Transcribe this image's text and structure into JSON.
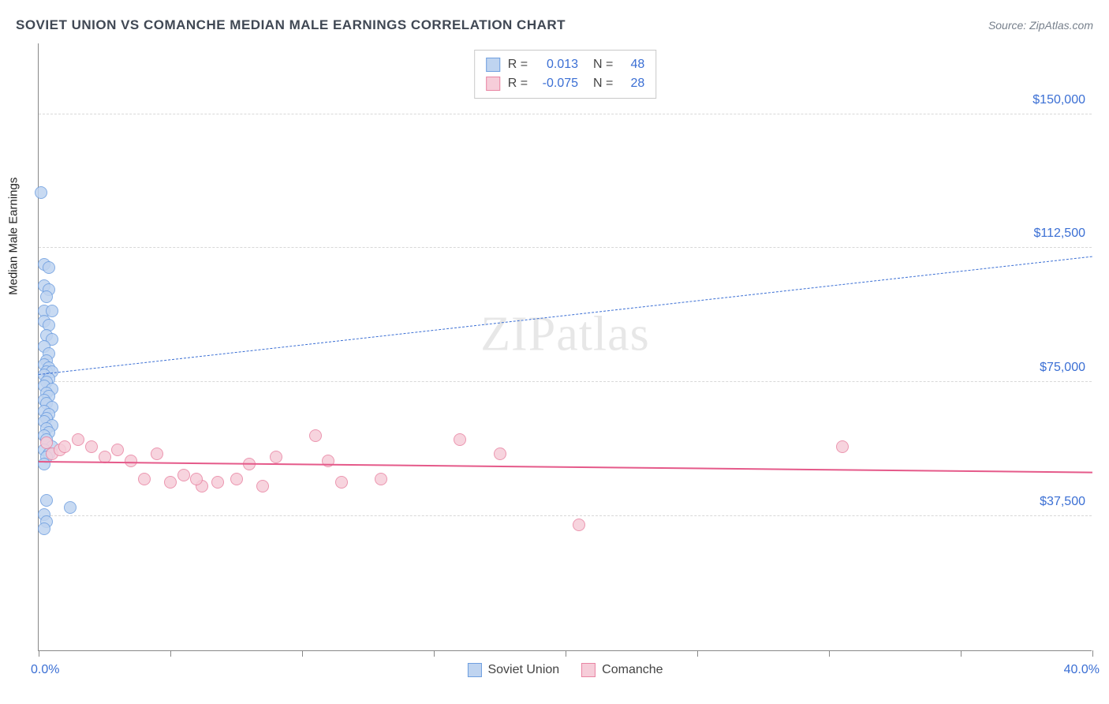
{
  "title": "SOVIET UNION VS COMANCHE MEDIAN MALE EARNINGS CORRELATION CHART",
  "source": "Source: ZipAtlas.com",
  "watermark": "ZIPatlas",
  "chart": {
    "type": "scatter",
    "y_axis_title": "Median Male Earnings",
    "x_range": [
      0,
      40
    ],
    "y_range": [
      0,
      170000
    ],
    "x_tick_positions": [
      0,
      5,
      10,
      15,
      20,
      25,
      30,
      35,
      40
    ],
    "x_label_min": "0.0%",
    "x_label_max": "40.0%",
    "y_gridlines": [
      {
        "value": 37500,
        "label": "$37,500"
      },
      {
        "value": 75000,
        "label": "$75,000"
      },
      {
        "value": 112500,
        "label": "$112,500"
      },
      {
        "value": 150000,
        "label": "$150,000"
      }
    ],
    "marker_radius": 8,
    "marker_stroke_width": 1.5,
    "background_color": "#ffffff",
    "grid_color": "#d8d8d8",
    "axis_color": "#888888",
    "series": [
      {
        "name": "Soviet Union",
        "fill": "#bfd4f0",
        "stroke": "#6f9fe0",
        "opacity": 0.85,
        "stats": {
          "R": "0.013",
          "N": "48"
        },
        "trend": {
          "x1": 0,
          "y1": 77000,
          "x2": 40,
          "y2": 110000,
          "dash": "7 6",
          "color": "#3b6fd4",
          "width": 1.5
        },
        "points": [
          [
            0.1,
            128000
          ],
          [
            0.2,
            108000
          ],
          [
            0.4,
            107000
          ],
          [
            0.2,
            102000
          ],
          [
            0.4,
            101000
          ],
          [
            0.3,
            99000
          ],
          [
            0.2,
            95000
          ],
          [
            0.5,
            95000
          ],
          [
            0.2,
            92000
          ],
          [
            0.4,
            91000
          ],
          [
            0.3,
            88000
          ],
          [
            0.5,
            87000
          ],
          [
            0.2,
            85000
          ],
          [
            0.4,
            83000
          ],
          [
            0.3,
            81000
          ],
          [
            0.2,
            80000
          ],
          [
            0.4,
            79000
          ],
          [
            0.3,
            78000
          ],
          [
            0.5,
            78000
          ],
          [
            0.2,
            77000
          ],
          [
            0.4,
            76000
          ],
          [
            0.3,
            75000
          ],
          [
            0.2,
            74000
          ],
          [
            0.5,
            73000
          ],
          [
            0.3,
            72000
          ],
          [
            0.4,
            71000
          ],
          [
            0.2,
            70000
          ],
          [
            0.3,
            69000
          ],
          [
            0.5,
            68000
          ],
          [
            0.2,
            67000
          ],
          [
            0.4,
            66000
          ],
          [
            0.3,
            65000
          ],
          [
            0.2,
            64000
          ],
          [
            0.5,
            63000
          ],
          [
            0.3,
            62000
          ],
          [
            0.4,
            61000
          ],
          [
            0.2,
            60000
          ],
          [
            0.3,
            59000
          ],
          [
            0.5,
            57000
          ],
          [
            0.2,
            56000
          ],
          [
            0.4,
            55000
          ],
          [
            0.3,
            54000
          ],
          [
            0.2,
            52000
          ],
          [
            0.3,
            42000
          ],
          [
            1.2,
            40000
          ],
          [
            0.2,
            38000
          ],
          [
            0.3,
            36000
          ],
          [
            0.2,
            34000
          ]
        ]
      },
      {
        "name": "Comanche",
        "fill": "#f6cdd9",
        "stroke": "#e985a3",
        "opacity": 0.85,
        "stats": {
          "R": "-0.075",
          "N": "28"
        },
        "trend": {
          "x1": 0,
          "y1": 52500,
          "x2": 40,
          "y2": 49500,
          "dash": "none",
          "color": "#e55a8a",
          "width": 2.5
        },
        "points": [
          [
            0.3,
            58000
          ],
          [
            0.5,
            55000
          ],
          [
            0.8,
            56000
          ],
          [
            1.0,
            57000
          ],
          [
            1.5,
            59000
          ],
          [
            2.0,
            57000
          ],
          [
            2.5,
            54000
          ],
          [
            3.0,
            56000
          ],
          [
            3.5,
            53000
          ],
          [
            4.0,
            48000
          ],
          [
            4.5,
            55000
          ],
          [
            5.0,
            47000
          ],
          [
            5.5,
            49000
          ],
          [
            6.2,
            46000
          ],
          [
            6.0,
            48000
          ],
          [
            6.8,
            47000
          ],
          [
            7.5,
            48000
          ],
          [
            8.0,
            52000
          ],
          [
            8.5,
            46000
          ],
          [
            9.0,
            54000
          ],
          [
            10.5,
            60000
          ],
          [
            11.0,
            53000
          ],
          [
            11.5,
            47000
          ],
          [
            13.0,
            48000
          ],
          [
            16.0,
            59000
          ],
          [
            17.5,
            55000
          ],
          [
            20.5,
            35000
          ],
          [
            30.5,
            57000
          ]
        ]
      }
    ],
    "bottom_legend": [
      {
        "label": "Soviet Union",
        "fill": "#bfd4f0",
        "stroke": "#6f9fe0"
      },
      {
        "label": "Comanche",
        "fill": "#f6cdd9",
        "stroke": "#e985a3"
      }
    ]
  }
}
